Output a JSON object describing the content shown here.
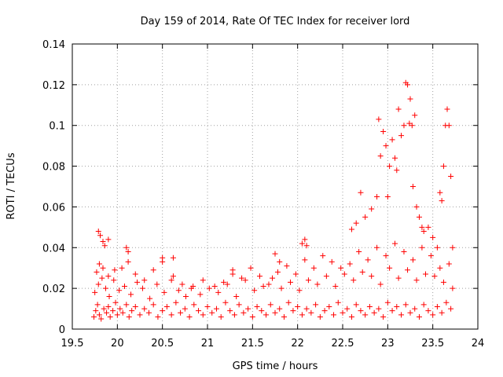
{
  "chart_data": {
    "type": "scatter",
    "title": "Day 159 of 2014, Rate Of TEC Index for receiver lord",
    "xlabel": "GPS time / hours",
    "ylabel": "ROTI / TECUs",
    "xlim": [
      19.5,
      24
    ],
    "ylim": [
      0,
      0.14
    ],
    "xticks": [
      19.5,
      20,
      20.5,
      21,
      21.5,
      22,
      22.5,
      23,
      23.5,
      24
    ],
    "xtick_labels": [
      "19.5",
      "20",
      "20.5",
      "21",
      "21.5",
      "22",
      "22.5",
      "23",
      "23.5",
      "24"
    ],
    "yticks": [
      0,
      0.02,
      0.04,
      0.06,
      0.08,
      0.1,
      0.12,
      0.14
    ],
    "ytick_labels": [
      "0",
      "0.02",
      "0.04",
      "0.06",
      "0.08",
      "0.1",
      "0.12",
      "0.14"
    ],
    "grid": true,
    "marker": "+",
    "marker_color": "#ff0000",
    "series": [
      {
        "name": "ROTI",
        "x": [
          19.74,
          19.76,
          19.78,
          19.8,
          19.82,
          19.85,
          19.88,
          19.9,
          19.92,
          19.95,
          19.98,
          20.0,
          20.03,
          20.06,
          20.1,
          20.13,
          20.16,
          20.2,
          20.25,
          20.3,
          20.35,
          20.4,
          20.45,
          20.5,
          20.55,
          20.6,
          20.65,
          20.7,
          20.75,
          20.8,
          20.85,
          20.9,
          20.95,
          21.0,
          21.05,
          21.1,
          21.15,
          21.2,
          21.25,
          21.3,
          21.35,
          21.4,
          21.45,
          21.5,
          21.55,
          21.6,
          21.65,
          21.7,
          21.75,
          21.8,
          21.85,
          21.9,
          21.95,
          22.0,
          22.05,
          22.1,
          22.15,
          22.2,
          22.25,
          22.3,
          22.35,
          22.4,
          22.45,
          22.5,
          22.55,
          22.6,
          22.65,
          22.7,
          22.75,
          22.8,
          22.85,
          22.9,
          22.95,
          23.0,
          23.05,
          23.1,
          23.15,
          23.2,
          23.25,
          23.3,
          23.35,
          23.4,
          23.45,
          23.5,
          23.55,
          23.6,
          23.65,
          23.7,
          19.75,
          19.79,
          19.83,
          19.87,
          19.91,
          19.96,
          20.02,
          20.08,
          20.15,
          20.22,
          20.28,
          20.36,
          20.44,
          20.52,
          20.6,
          20.68,
          20.76,
          20.84,
          20.92,
          21.02,
          21.12,
          21.22,
          21.32,
          21.42,
          21.52,
          21.62,
          21.72,
          21.82,
          21.92,
          22.02,
          22.12,
          22.22,
          22.32,
          22.42,
          22.52,
          22.62,
          22.72,
          22.82,
          22.92,
          23.02,
          23.12,
          23.22,
          23.32,
          23.42,
          23.52,
          23.62,
          23.72,
          19.77,
          19.8,
          19.84,
          19.9,
          19.97,
          20.05,
          20.12,
          20.2,
          20.3,
          20.4,
          20.5,
          20.62,
          20.72,
          20.82,
          20.95,
          21.08,
          21.18,
          21.28,
          21.38,
          21.48,
          21.58,
          21.68,
          21.78,
          21.88,
          21.98,
          22.08,
          22.18,
          22.28,
          22.38,
          22.48,
          22.58,
          22.68,
          22.78,
          22.88,
          22.98,
          23.08,
          23.18,
          23.28,
          23.38,
          23.48,
          23.58,
          23.68,
          19.79,
          19.81,
          19.84,
          19.86,
          19.9,
          20.1,
          20.12,
          20.5,
          20.62,
          21.28,
          21.75,
          21.8,
          22.05,
          22.08,
          22.1,
          22.6,
          22.65,
          22.7,
          22.75,
          22.82,
          22.88,
          22.9,
          22.92,
          22.95,
          22.98,
          23.0,
          23.02,
          23.05,
          23.08,
          23.1,
          23.12,
          23.15,
          23.18,
          23.2,
          23.22,
          23.24,
          23.25,
          23.27,
          23.28,
          23.3,
          23.32,
          23.35,
          23.38,
          23.4,
          23.45,
          23.5,
          23.55,
          23.58,
          23.6,
          23.62,
          23.64,
          23.66,
          23.68,
          23.7,
          23.72
        ],
        "y": [
          0.006,
          0.009,
          0.012,
          0.007,
          0.005,
          0.01,
          0.008,
          0.011,
          0.006,
          0.009,
          0.013,
          0.007,
          0.01,
          0.008,
          0.012,
          0.006,
          0.009,
          0.011,
          0.007,
          0.01,
          0.008,
          0.012,
          0.006,
          0.009,
          0.011,
          0.007,
          0.013,
          0.008,
          0.01,
          0.006,
          0.012,
          0.009,
          0.007,
          0.011,
          0.008,
          0.01,
          0.006,
          0.013,
          0.009,
          0.007,
          0.012,
          0.008,
          0.01,
          0.006,
          0.011,
          0.009,
          0.007,
          0.012,
          0.008,
          0.01,
          0.006,
          0.013,
          0.009,
          0.011,
          0.007,
          0.01,
          0.008,
          0.012,
          0.006,
          0.009,
          0.011,
          0.007,
          0.013,
          0.008,
          0.01,
          0.006,
          0.012,
          0.009,
          0.007,
          0.011,
          0.008,
          0.01,
          0.006,
          0.013,
          0.009,
          0.011,
          0.007,
          0.012,
          0.008,
          0.01,
          0.006,
          0.012,
          0.009,
          0.007,
          0.011,
          0.008,
          0.013,
          0.01,
          0.018,
          0.022,
          0.025,
          0.02,
          0.016,
          0.024,
          0.019,
          0.021,
          0.017,
          0.023,
          0.02,
          0.015,
          0.022,
          0.018,
          0.024,
          0.019,
          0.016,
          0.021,
          0.017,
          0.02,
          0.018,
          0.022,
          0.016,
          0.024,
          0.019,
          0.021,
          0.025,
          0.02,
          0.023,
          0.019,
          0.024,
          0.022,
          0.026,
          0.021,
          0.027,
          0.024,
          0.028,
          0.026,
          0.022,
          0.03,
          0.025,
          0.029,
          0.024,
          0.027,
          0.026,
          0.023,
          0.02,
          0.028,
          0.032,
          0.03,
          0.026,
          0.029,
          0.03,
          0.033,
          0.027,
          0.024,
          0.029,
          0.033,
          0.026,
          0.022,
          0.02,
          0.024,
          0.021,
          0.023,
          0.027,
          0.025,
          0.03,
          0.026,
          0.022,
          0.028,
          0.031,
          0.027,
          0.034,
          0.03,
          0.036,
          0.033,
          0.03,
          0.032,
          0.038,
          0.034,
          0.04,
          0.036,
          0.042,
          0.038,
          0.034,
          0.04,
          0.036,
          0.03,
          0.032,
          0.048,
          0.046,
          0.043,
          0.041,
          0.044,
          0.04,
          0.038,
          0.035,
          0.035,
          0.029,
          0.037,
          0.033,
          0.042,
          0.044,
          0.041,
          0.049,
          0.052,
          0.067,
          0.055,
          0.059,
          0.065,
          0.103,
          0.085,
          0.097,
          0.09,
          0.065,
          0.08,
          0.093,
          0.084,
          0.078,
          0.108,
          0.095,
          0.1,
          0.121,
          0.12,
          0.101,
          0.113,
          0.1,
          0.07,
          0.105,
          0.06,
          0.055,
          0.05,
          0.048,
          0.05,
          0.045,
          0.04,
          0.067,
          0.063,
          0.08,
          0.1,
          0.108,
          0.1,
          0.075,
          0.04
        ]
      }
    ]
  }
}
